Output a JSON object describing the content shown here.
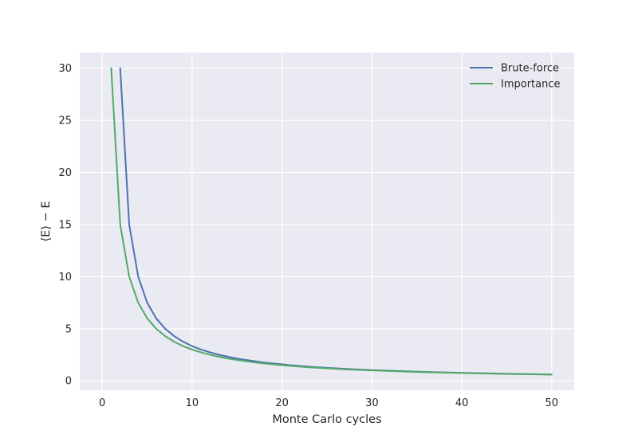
{
  "chart_data": {
    "type": "line",
    "title": "",
    "xlabel": "Monte Carlo cycles",
    "ylabel": "⟨E⟩ − E",
    "xlim": [
      -2.5,
      52.5
    ],
    "ylim": [
      -0.9,
      31.5
    ],
    "xticks": [
      0,
      10,
      20,
      30,
      40,
      50
    ],
    "yticks": [
      0,
      5,
      10,
      15,
      20,
      25,
      30
    ],
    "xtick_labels": [
      "0",
      "10",
      "20",
      "30",
      "40",
      "50"
    ],
    "ytick_labels": [
      "0",
      "5",
      "10",
      "15",
      "20",
      "25",
      "30"
    ],
    "grid": true,
    "legend_position": "top-right",
    "series": [
      {
        "name": "Brute-force",
        "color": "#4c72b0",
        "x": [
          2,
          3,
          4,
          5,
          6,
          7,
          8,
          9,
          10,
          11,
          12,
          13,
          14,
          15,
          16,
          17,
          18,
          19,
          20,
          21,
          22,
          23,
          24,
          25,
          26,
          27,
          28,
          29,
          30,
          31,
          32,
          33,
          34,
          35,
          36,
          37,
          38,
          39,
          40,
          41,
          42,
          43,
          44,
          45,
          46,
          47,
          48,
          49,
          50
        ],
        "y": [
          30,
          15,
          10,
          7.5,
          6,
          5,
          4.29,
          3.75,
          3.33,
          3,
          2.73,
          2.5,
          2.31,
          2.14,
          2,
          1.88,
          1.76,
          1.67,
          1.58,
          1.5,
          1.43,
          1.36,
          1.3,
          1.25,
          1.2,
          1.15,
          1.11,
          1.07,
          1.03,
          1,
          0.97,
          0.94,
          0.91,
          0.88,
          0.86,
          0.83,
          0.81,
          0.79,
          0.77,
          0.75,
          0.73,
          0.71,
          0.7,
          0.68,
          0.67,
          0.65,
          0.64,
          0.63,
          0.61
        ]
      },
      {
        "name": "Importance",
        "color": "#55a868",
        "x": [
          1,
          2,
          3,
          4,
          5,
          6,
          7,
          8,
          9,
          10,
          11,
          12,
          13,
          14,
          15,
          16,
          17,
          18,
          19,
          20,
          21,
          22,
          23,
          24,
          25,
          26,
          27,
          28,
          29,
          30,
          31,
          32,
          33,
          34,
          35,
          36,
          37,
          38,
          39,
          40,
          41,
          42,
          43,
          44,
          45,
          46,
          47,
          48,
          49,
          50
        ],
        "y": [
          30,
          15,
          10,
          7.5,
          6,
          5,
          4.29,
          3.75,
          3.33,
          3,
          2.73,
          2.5,
          2.31,
          2.14,
          2,
          1.88,
          1.76,
          1.67,
          1.58,
          1.5,
          1.43,
          1.36,
          1.3,
          1.25,
          1.2,
          1.15,
          1.11,
          1.07,
          1.03,
          1,
          0.97,
          0.94,
          0.91,
          0.88,
          0.86,
          0.83,
          0.81,
          0.79,
          0.77,
          0.75,
          0.73,
          0.71,
          0.7,
          0.68,
          0.67,
          0.65,
          0.64,
          0.63,
          0.61,
          0.6
        ]
      }
    ]
  }
}
